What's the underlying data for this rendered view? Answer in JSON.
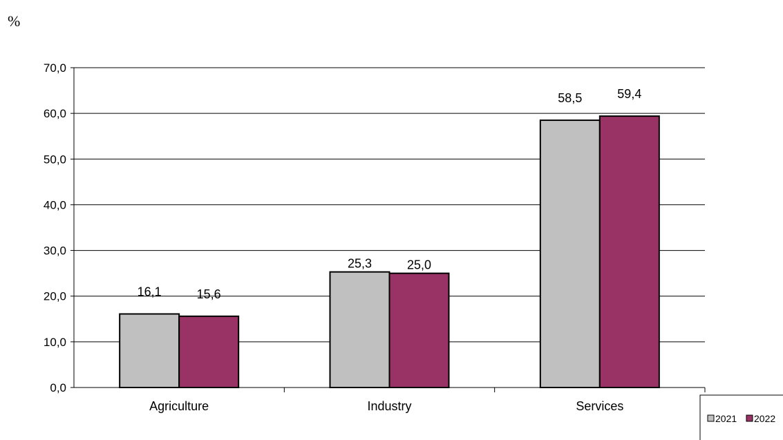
{
  "chart_data": {
    "type": "bar",
    "unit_label": "%",
    "categories": [
      "Agriculture",
      "Industry",
      "Services"
    ],
    "series": [
      {
        "name": "2021",
        "values": [
          16.1,
          25.3,
          58.5
        ],
        "labels": [
          "16,1",
          "25,3",
          "58,5"
        ],
        "color": "#c0c0c0"
      },
      {
        "name": "2022",
        "values": [
          15.6,
          25.0,
          59.4
        ],
        "labels": [
          "15,6",
          "25,0",
          "59,4"
        ],
        "color": "#993366"
      }
    ],
    "ylim": [
      0,
      70
    ],
    "yticks": [
      0,
      10,
      20,
      30,
      40,
      50,
      60,
      70
    ],
    "ytick_labels": [
      "0,0",
      "10,0",
      "20,0",
      "30,0",
      "40,0",
      "50,0",
      "60,0",
      "70,0"
    ],
    "grid": true,
    "legend": "bottom-right"
  }
}
